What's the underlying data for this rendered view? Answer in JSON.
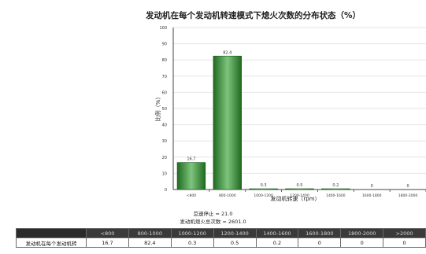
{
  "chart_data": {
    "type": "bar",
    "title": "发动机在每个发动机转速模式下熄火次数的分布状态（%）",
    "ylabel": "比例（%）",
    "xlabel": "发动机转速（rpm）",
    "categories": [
      "<800",
      "800-1000",
      "1000-1200",
      "1200-1400",
      "1400-1600",
      "1600-1800",
      "1800-2000"
    ],
    "values": [
      16.7,
      82.4,
      0.3,
      0.5,
      0.2,
      0,
      0
    ],
    "data_labels": [
      "16.7",
      "82.4",
      "0.3",
      "0.5",
      "0.2",
      "0",
      "0"
    ],
    "ylim": [
      0,
      100
    ],
    "yticks": [
      "0",
      "10",
      "20",
      "30",
      "40",
      "50",
      "60",
      "70",
      "80",
      "90",
      "100"
    ],
    "grid": true,
    "colors": {
      "bar_dark": "#1f6a1f",
      "bar_light": "#7ec47e",
      "axis": "#444444",
      "grid": "#e6e6e6"
    }
  },
  "info": {
    "stop_count": "怠速停止 = 21.0",
    "total_stalls": "发动机熄火总次数 = 2601.0"
  },
  "table": {
    "row_header": "发动机在每个发动机转",
    "columns": [
      "<800",
      "800-1000",
      "1000-1200",
      "1200-1400",
      "1400-1600",
      "1600-1800",
      "1800-2000",
      ">2000"
    ],
    "values": [
      "16.7",
      "82.4",
      "0.3",
      "0.5",
      "0.2",
      "0",
      "0",
      "0"
    ]
  }
}
